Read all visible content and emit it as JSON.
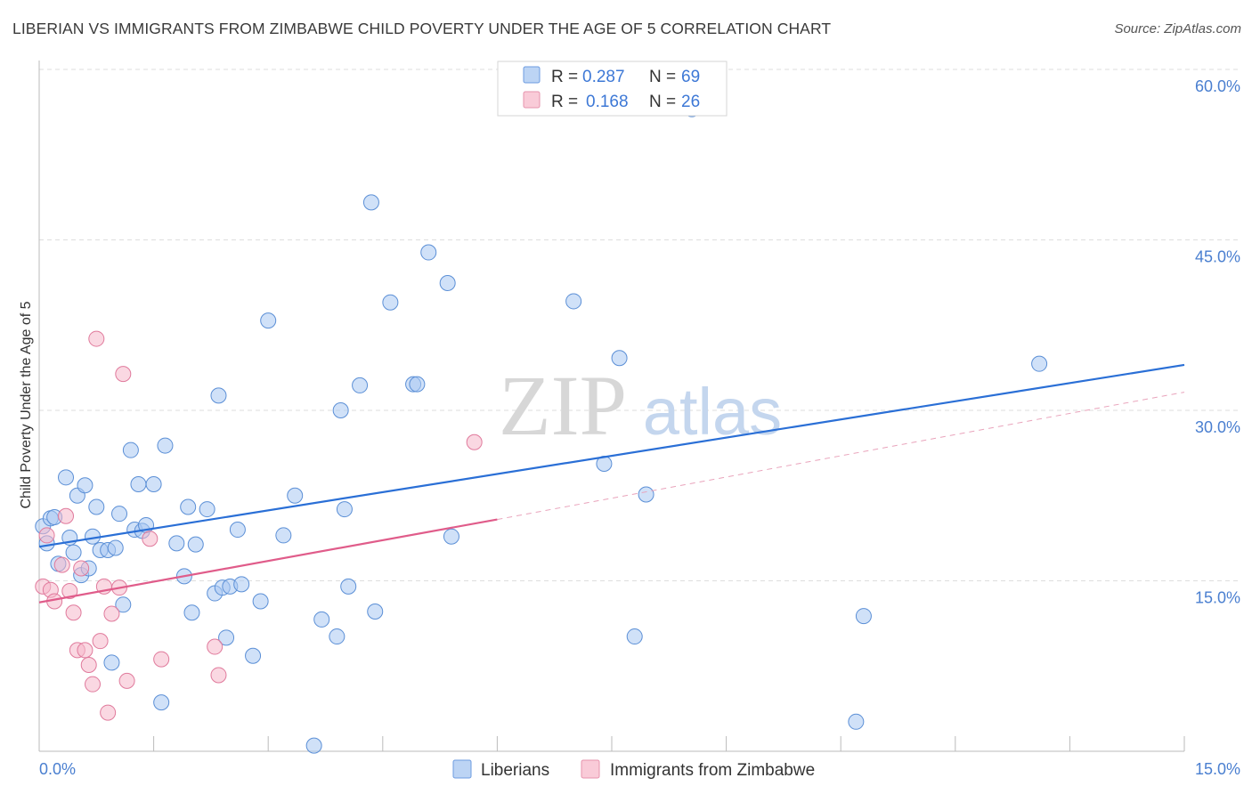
{
  "header": {
    "title": "LIBERIAN VS IMMIGRANTS FROM ZIMBABWE CHILD POVERTY UNDER THE AGE OF 5 CORRELATION CHART",
    "source": "Source: ZipAtlas.com"
  },
  "watermark": {
    "zip": "ZIP",
    "atlas": "atlas"
  },
  "legend": {
    "rows": [
      {
        "r_label": "R =",
        "r_value": "0.287",
        "n_label": "N =",
        "n_value": "69",
        "color": "#a9c8f2"
      },
      {
        "r_label": "R =",
        "r_value": "0.168",
        "n_label": "N =",
        "n_value": "26",
        "color": "#f5b8cb"
      }
    ]
  },
  "bottom_legend": [
    "Liberians",
    "Immigrants from Zimbabwe"
  ],
  "chart_data": {
    "type": "scatter",
    "title": "LIBERIAN VS IMMIGRANTS FROM ZIMBABWE CHILD POVERTY UNDER THE AGE OF 5 CORRELATION CHART",
    "xlabel": "",
    "ylabel": "Child Poverty Under the Age of 5",
    "xlim": [
      0,
      15
    ],
    "ylim": [
      0,
      60
    ],
    "x_tick_labels": [
      "0.0%",
      "15.0%"
    ],
    "y_tick_values": [
      15,
      30,
      45,
      60
    ],
    "y_tick_labels": [
      "15.0%",
      "30.0%",
      "45.0%",
      "60.0%"
    ],
    "grid": true,
    "series": [
      {
        "name": "Liberians",
        "color": "#a9c8f2",
        "stroke": "#5b8fd6",
        "line_color": "#2a6fd6",
        "trend": {
          "x": [
            0,
            15
          ],
          "y": [
            18.0,
            34.0
          ]
        },
        "points": [
          [
            0.05,
            19.8
          ],
          [
            0.1,
            18.3
          ],
          [
            0.15,
            20.5
          ],
          [
            0.2,
            20.6
          ],
          [
            0.25,
            16.5
          ],
          [
            0.35,
            24.1
          ],
          [
            0.4,
            18.8
          ],
          [
            0.45,
            17.5
          ],
          [
            0.5,
            22.5
          ],
          [
            0.55,
            15.5
          ],
          [
            0.6,
            23.4
          ],
          [
            0.65,
            16.1
          ],
          [
            0.7,
            18.9
          ],
          [
            0.75,
            21.5
          ],
          [
            0.8,
            17.7
          ],
          [
            0.9,
            17.7
          ],
          [
            0.95,
            7.8
          ],
          [
            1.0,
            17.9
          ],
          [
            1.05,
            20.9
          ],
          [
            1.1,
            12.9
          ],
          [
            1.2,
            26.5
          ],
          [
            1.25,
            19.5
          ],
          [
            1.3,
            23.5
          ],
          [
            1.35,
            19.4
          ],
          [
            1.4,
            19.9
          ],
          [
            1.5,
            23.5
          ],
          [
            1.6,
            4.3
          ],
          [
            1.65,
            26.9
          ],
          [
            1.8,
            18.3
          ],
          [
            1.9,
            15.4
          ],
          [
            1.95,
            21.5
          ],
          [
            2.0,
            12.2
          ],
          [
            2.05,
            18.2
          ],
          [
            2.2,
            21.3
          ],
          [
            2.3,
            13.9
          ],
          [
            2.35,
            31.3
          ],
          [
            2.4,
            14.4
          ],
          [
            2.45,
            10.0
          ],
          [
            2.5,
            14.5
          ],
          [
            2.6,
            19.5
          ],
          [
            2.65,
            14.7
          ],
          [
            2.8,
            8.4
          ],
          [
            2.9,
            13.2
          ],
          [
            3.0,
            37.9
          ],
          [
            3.2,
            19.0
          ],
          [
            3.35,
            22.5
          ],
          [
            3.6,
            0.5
          ],
          [
            3.7,
            11.6
          ],
          [
            3.9,
            10.1
          ],
          [
            3.95,
            30.0
          ],
          [
            4.0,
            21.3
          ],
          [
            4.05,
            14.5
          ],
          [
            4.2,
            32.2
          ],
          [
            4.35,
            48.3
          ],
          [
            4.4,
            12.3
          ],
          [
            4.6,
            39.5
          ],
          [
            4.9,
            32.3
          ],
          [
            4.95,
            32.3
          ],
          [
            5.1,
            43.9
          ],
          [
            5.35,
            41.2
          ],
          [
            5.4,
            18.9
          ],
          [
            7.0,
            39.6
          ],
          [
            7.4,
            25.3
          ],
          [
            7.6,
            34.6
          ],
          [
            7.8,
            10.1
          ],
          [
            7.95,
            22.6
          ],
          [
            8.55,
            56.5
          ],
          [
            10.8,
            11.9
          ],
          [
            10.7,
            2.6
          ],
          [
            13.1,
            34.1
          ]
        ]
      },
      {
        "name": "Immigrants from Zimbabwe",
        "color": "#f5b8cb",
        "stroke": "#e07a9c",
        "line_color": "#e05c8a",
        "trend": {
          "x": [
            0,
            6
          ],
          "y": [
            13.1,
            20.4
          ]
        },
        "trend_dashed": {
          "x": [
            6,
            15
          ],
          "y": [
            20.4,
            31.6
          ]
        },
        "points": [
          [
            0.05,
            14.5
          ],
          [
            0.1,
            19.0
          ],
          [
            0.15,
            14.2
          ],
          [
            0.2,
            13.2
          ],
          [
            0.3,
            16.4
          ],
          [
            0.35,
            20.7
          ],
          [
            0.4,
            14.1
          ],
          [
            0.45,
            12.2
          ],
          [
            0.5,
            8.9
          ],
          [
            0.55,
            16.1
          ],
          [
            0.6,
            8.9
          ],
          [
            0.65,
            7.6
          ],
          [
            0.7,
            5.9
          ],
          [
            0.75,
            36.3
          ],
          [
            0.8,
            9.7
          ],
          [
            0.85,
            14.5
          ],
          [
            0.9,
            3.4
          ],
          [
            0.95,
            12.1
          ],
          [
            1.05,
            14.4
          ],
          [
            1.1,
            33.2
          ],
          [
            1.15,
            6.2
          ],
          [
            1.45,
            18.7
          ],
          [
            1.6,
            8.1
          ],
          [
            2.3,
            9.2
          ],
          [
            2.35,
            6.7
          ],
          [
            5.7,
            27.2
          ]
        ]
      }
    ]
  }
}
